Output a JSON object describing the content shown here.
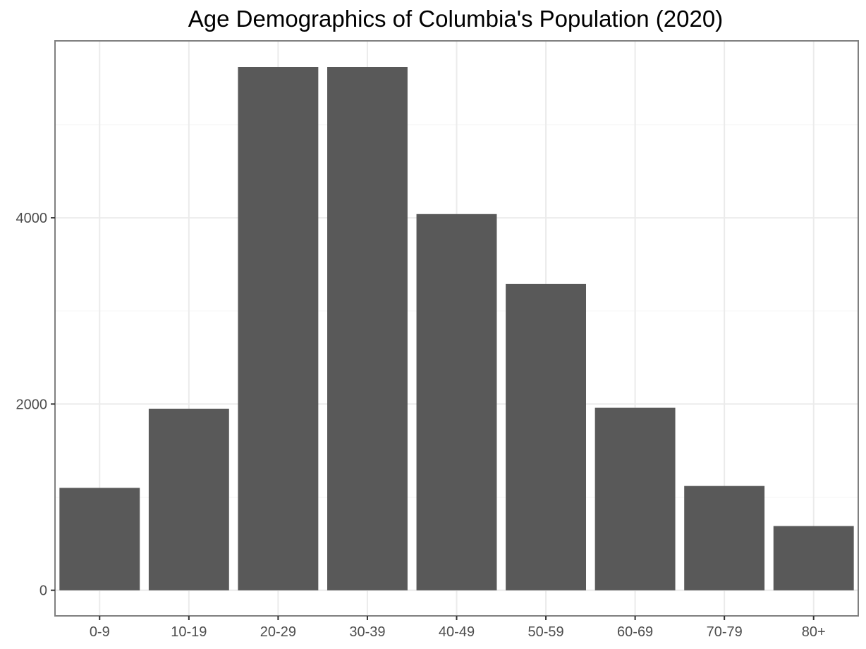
{
  "chart_data": {
    "type": "bar",
    "title": "Age Demographics of Columbia's Population (2020)",
    "xlabel": "",
    "ylabel": "",
    "categories": [
      "0-9",
      "10-19",
      "20-29",
      "30-39",
      "40-49",
      "50-59",
      "60-69",
      "70-79",
      "80+"
    ],
    "values": [
      1100,
      1950,
      5620,
      5620,
      4040,
      3290,
      1960,
      1120,
      690
    ],
    "ylim": [
      -275,
      5900
    ],
    "yticks": [
      0,
      2000,
      4000
    ],
    "ytick_labels": [
      "0",
      "2000",
      "4000"
    ],
    "grid": true,
    "legend": "none",
    "colors": {
      "bar": "#595959",
      "panel_border": "#7f7f7f",
      "grid_major": "#ebebeb",
      "grid_minor": "#f5f5f5",
      "tick_text": "#4d4d4d",
      "title_text": "#000000"
    }
  }
}
